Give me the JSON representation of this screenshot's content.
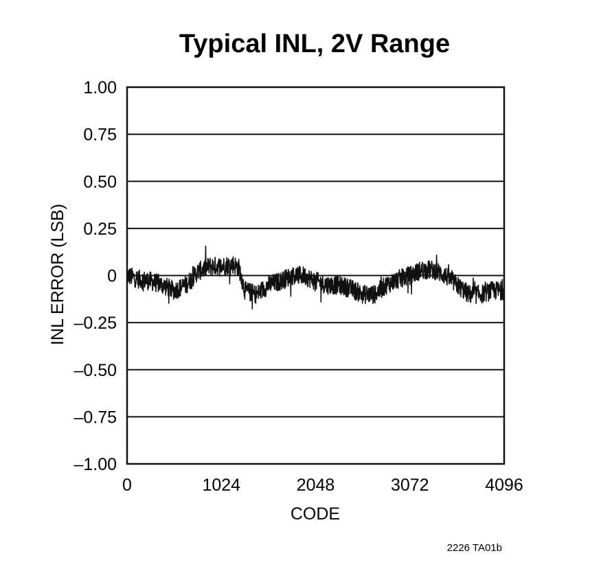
{
  "chart_data": {
    "type": "line",
    "title": "Typical INL, 2V Range",
    "xlabel": "CODE",
    "ylabel": "INL ERROR (LSB)",
    "xlim": [
      0,
      4096
    ],
    "ylim": [
      -1.0,
      1.0
    ],
    "x_ticks": [
      "0",
      "1024",
      "2048",
      "3072",
      "4096"
    ],
    "x_tick_values": [
      0,
      1024,
      2048,
      3072,
      4096
    ],
    "y_ticks": [
      "1.00",
      "0.75",
      "0.50",
      "0.25",
      "0",
      "–0.25",
      "–0.50",
      "–0.75",
      "–1.00"
    ],
    "y_tick_values": [
      1.0,
      0.75,
      0.5,
      0.25,
      0,
      -0.25,
      -0.5,
      -0.75,
      -1.0
    ],
    "grid": "horizontal",
    "series": [
      {
        "name": "INL",
        "trend_x": [
          0,
          128,
          256,
          384,
          512,
          640,
          768,
          896,
          1024,
          1152,
          1216,
          1280,
          1408,
          1536,
          1664,
          1792,
          1920,
          2048,
          2176,
          2304,
          2432,
          2560,
          2688,
          2816,
          2944,
          3072,
          3200,
          3328,
          3456,
          3584,
          3712,
          3840,
          3968,
          4096
        ],
        "trend_y": [
          0.0,
          -0.02,
          -0.03,
          -0.05,
          -0.08,
          -0.05,
          0.02,
          0.05,
          0.05,
          0.06,
          0.04,
          -0.08,
          -0.1,
          -0.05,
          -0.03,
          0.0,
          0.0,
          -0.03,
          -0.05,
          -0.05,
          -0.07,
          -0.1,
          -0.1,
          -0.05,
          -0.02,
          0.0,
          0.03,
          0.03,
          0.0,
          -0.05,
          -0.1,
          -0.1,
          -0.08,
          -0.08
        ],
        "noise_amplitude": 0.05,
        "peak_max": 0.2,
        "peak_min": -0.22
      }
    ]
  },
  "footnote": "2226 TA01b"
}
